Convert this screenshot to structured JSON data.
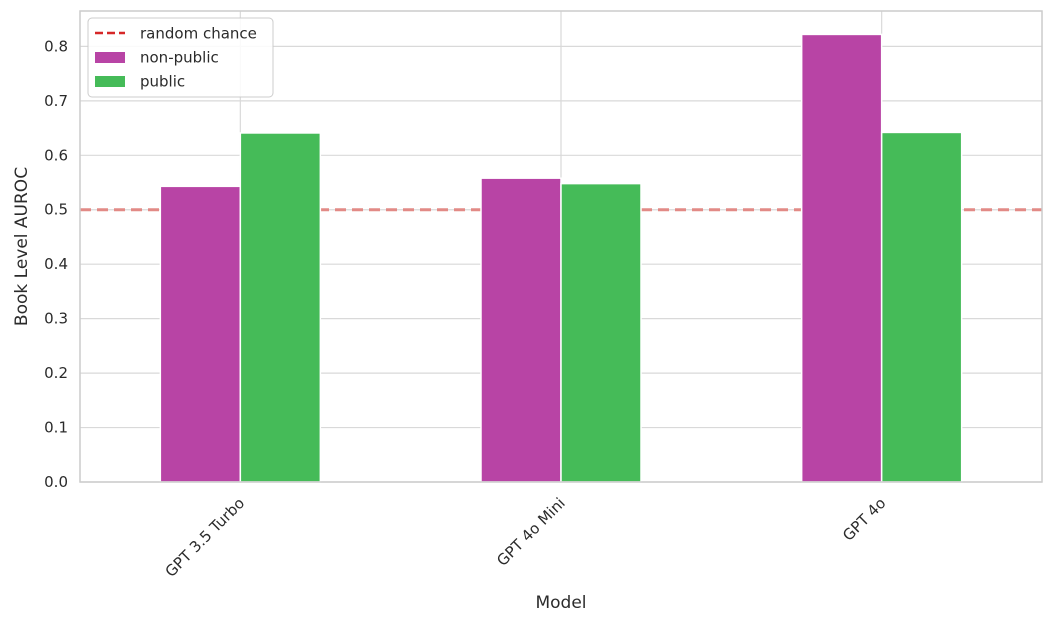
{
  "chart_data": {
    "type": "bar",
    "categories": [
      "GPT 3.5 Turbo",
      "GPT 4o Mini",
      "GPT 4o"
    ],
    "series": [
      {
        "name": "non-public",
        "values": [
          0.543,
          0.558,
          0.822
        ],
        "color": "#b844a5"
      },
      {
        "name": "public",
        "values": [
          0.641,
          0.548,
          0.642
        ],
        "color": "#45bb58"
      }
    ],
    "reference_line": {
      "name": "random chance",
      "y": 0.5,
      "color": "#d62728",
      "style": "dashed"
    },
    "xlabel": "Model",
    "ylabel": "Book Level AUROC",
    "ylim": [
      0,
      0.865
    ],
    "yticks": [
      0.0,
      0.1,
      0.2,
      0.3,
      0.4,
      0.5,
      0.6,
      0.7,
      0.8
    ],
    "ytick_labels": [
      "0.0",
      "0.1",
      "0.2",
      "0.3",
      "0.4",
      "0.5",
      "0.6",
      "0.7",
      "0.8"
    ],
    "grid": true,
    "legend_position": "top-left",
    "xtick_rotation": "45"
  }
}
